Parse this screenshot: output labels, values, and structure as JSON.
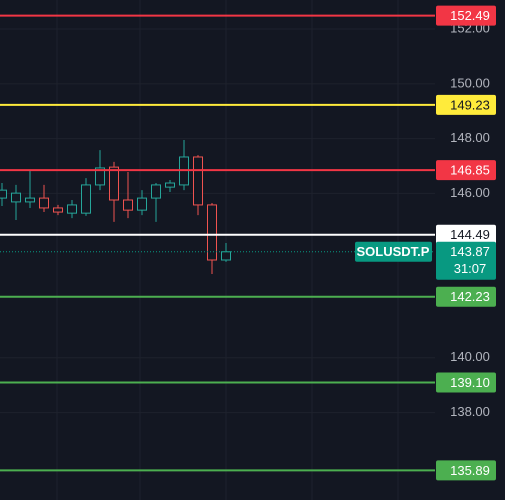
{
  "chart_data": {
    "type": "candlestick",
    "ylim": [
      134.81,
      153.06
    ],
    "yticks": [
      {
        "value": 152,
        "label": "152.00"
      },
      {
        "value": 150,
        "label": "150.00"
      },
      {
        "value": 148,
        "label": "148.00"
      },
      {
        "value": 146,
        "label": "146.00"
      },
      {
        "value": 140,
        "label": "140.00"
      },
      {
        "value": 138,
        "label": "138.00"
      }
    ],
    "grid": true,
    "up_color": "#26a69a",
    "down_color": "#ef5350",
    "open": [
      145.83,
      145.69,
      145.69,
      145.83,
      145.47,
      145.28,
      145.28,
      146.31,
      146.96,
      145.76,
      145.39,
      145.83,
      146.23,
      146.31,
      147.33,
      145.58,
      143.57
    ],
    "high": [
      146.38,
      146.31,
      146.85,
      146.31,
      145.58,
      145.76,
      146.56,
      147.58,
      147.15,
      146.78,
      146.12,
      146.38,
      146.49,
      147.95,
      147.4,
      145.65,
      144.19
    ],
    "low": [
      145.54,
      145.03,
      145.47,
      145.32,
      145.21,
      145.1,
      145.18,
      146.12,
      144.96,
      145.1,
      145.21,
      144.96,
      146.05,
      146.12,
      145.21,
      143.06,
      143.5
    ],
    "close": [
      146.12,
      146.01,
      145.83,
      145.47,
      145.32,
      145.58,
      146.31,
      146.93,
      145.76,
      145.39,
      145.83,
      146.31,
      146.38,
      147.33,
      145.58,
      143.57,
      143.87
    ],
    "levels": [
      {
        "value": 152.49,
        "label": "152.49",
        "color": "#f23645"
      },
      {
        "value": 149.23,
        "label": "149.23",
        "color": "#ffeb3b"
      },
      {
        "value": 146.85,
        "label": "146.85",
        "color": "#f23645"
      },
      {
        "value": 144.49,
        "label": "144.49",
        "color": "#ffffff"
      },
      {
        "value": 142.23,
        "label": "142.23",
        "color": "#4caf50"
      },
      {
        "value": 139.1,
        "label": "139.10",
        "color": "#4caf50"
      },
      {
        "value": 135.89,
        "label": "135.89",
        "color": "#4caf50"
      }
    ],
    "current": {
      "symbol": "SOLUSDT.P",
      "value": 143.87,
      "label": "143.87",
      "countdown": "31:07",
      "color": "#089981"
    }
  }
}
